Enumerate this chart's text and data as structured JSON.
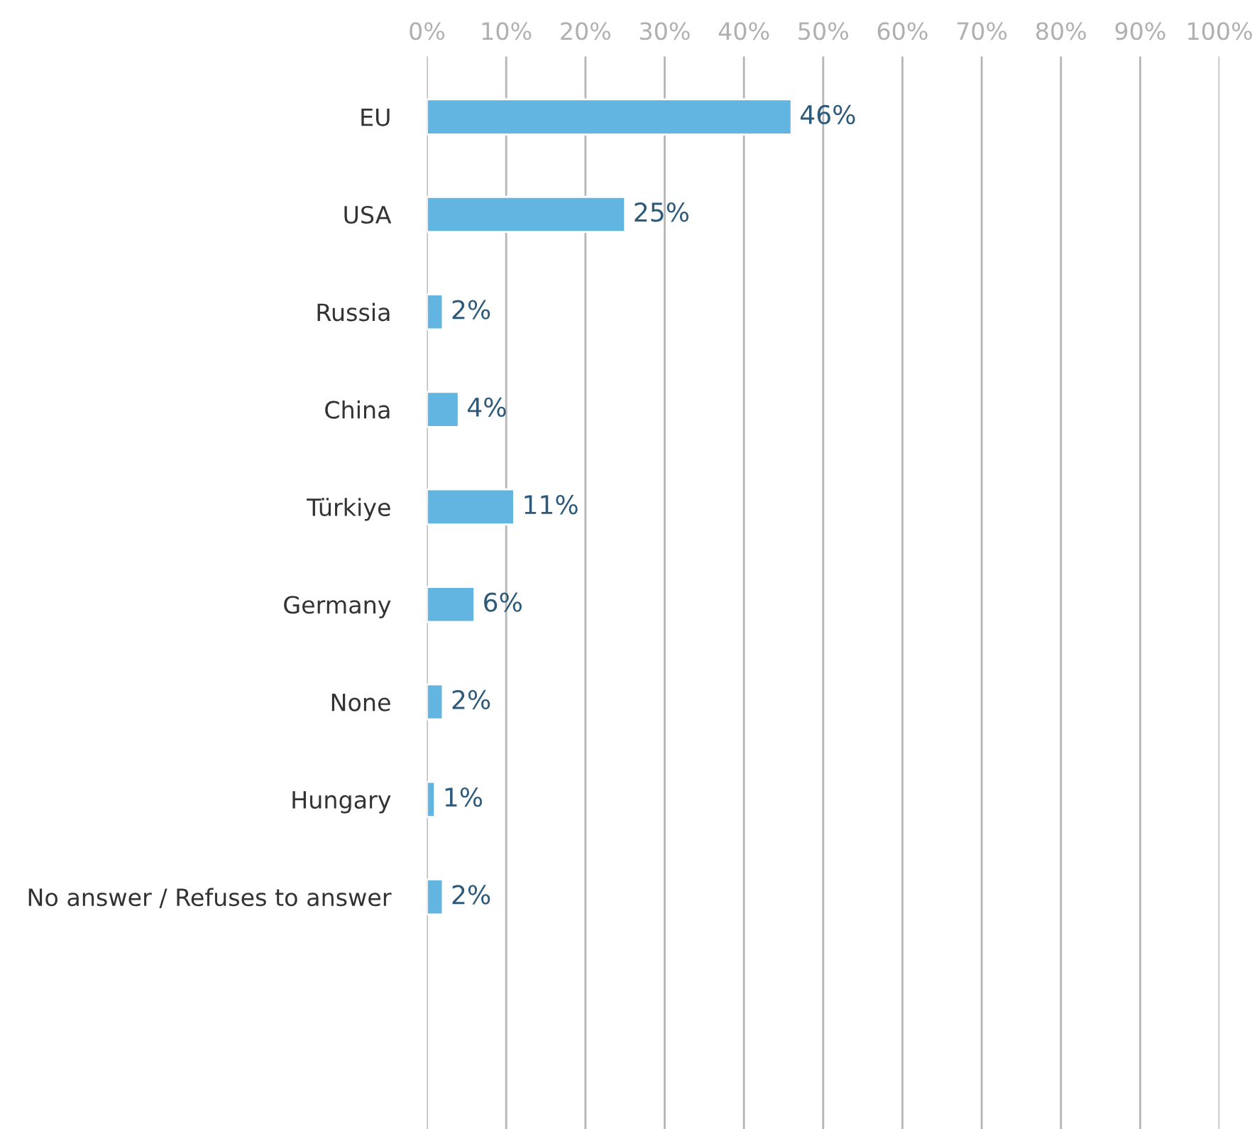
{
  "chart_data": {
    "type": "bar",
    "orientation": "horizontal",
    "categories": [
      "EU",
      "USA",
      "Russia",
      "China",
      "Türkiye",
      "Germany",
      "None",
      "Hungary",
      "No answer / Refuses to answer"
    ],
    "values": [
      46,
      25,
      2,
      4,
      11,
      6,
      2,
      1,
      2
    ],
    "value_labels": [
      "46%",
      "25%",
      "2%",
      "4%",
      "11%",
      "6%",
      "2%",
      "1%",
      "2%"
    ],
    "color": "#62b5e0",
    "xlim": [
      0,
      100
    ],
    "xticks": [
      {
        "value": 0,
        "label": "0%"
      },
      {
        "value": 10,
        "label": "10%"
      },
      {
        "value": 20,
        "label": "20%"
      },
      {
        "value": 30,
        "label": "30%"
      },
      {
        "value": 40,
        "label": "40%"
      },
      {
        "value": 50,
        "label": "50%"
      },
      {
        "value": 60,
        "label": "60%"
      },
      {
        "value": 70,
        "label": "70%"
      },
      {
        "value": 80,
        "label": "80%"
      },
      {
        "value": 90,
        "label": "90%"
      },
      {
        "value": 100,
        "label": "100%"
      }
    ],
    "grid": "x",
    "legend": false
  }
}
